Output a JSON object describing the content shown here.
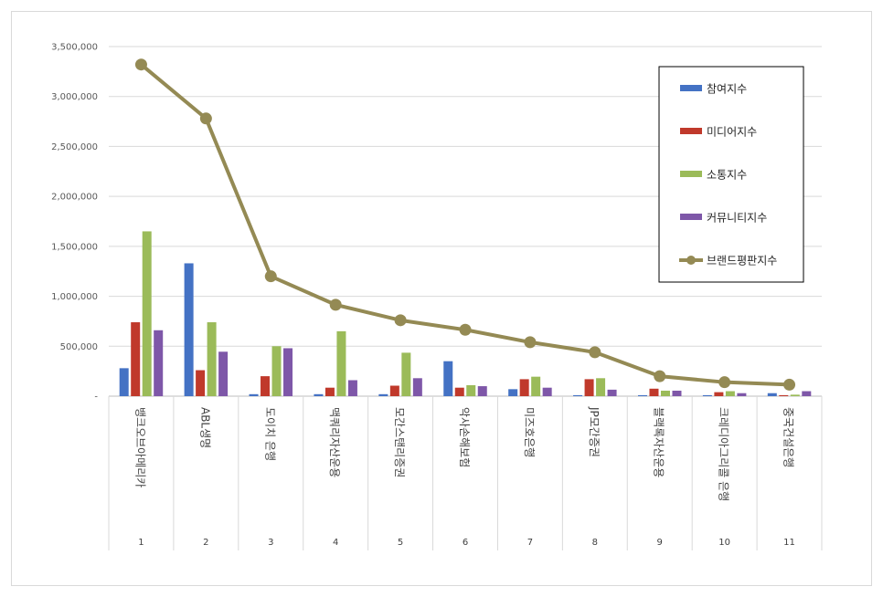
{
  "chart_data": {
    "type": "bar",
    "title": "",
    "xlabel": "",
    "ylabel": "",
    "ylim": [
      0,
      3500000
    ],
    "y_ticks": [
      "-",
      "500,000",
      "1,000,000",
      "1,500,000",
      "2,000,000",
      "2,500,000",
      "3,000,000",
      "3,500,000"
    ],
    "grid": true,
    "legend_position": "right",
    "categories": [
      "뱅크오브아메리카",
      "ABL생명",
      "도이치 은행",
      "맥쿼리자산운용",
      "모간스탠리증권",
      "악사손해보험",
      "미즈호은행",
      "JP모간증권",
      "블랙록자산운용",
      "크레디아그리콜 은행",
      "중국건설은행"
    ],
    "category_numbers": [
      "1",
      "2",
      "3",
      "4",
      "5",
      "6",
      "7",
      "8",
      "9",
      "10",
      "11"
    ],
    "series": [
      {
        "name": "참여지수",
        "kind": "bar",
        "color": "#4472c4",
        "values": [
          280000,
          1330000,
          20000,
          20000,
          20000,
          350000,
          70000,
          10000,
          10000,
          10000,
          30000
        ]
      },
      {
        "name": "미디어지수",
        "kind": "bar",
        "color": "#c0392b",
        "values": [
          740000,
          260000,
          200000,
          85000,
          105000,
          85000,
          170000,
          170000,
          75000,
          40000,
          10000
        ]
      },
      {
        "name": "소통지수",
        "kind": "bar",
        "color": "#9bbb59",
        "values": [
          1650000,
          740000,
          500000,
          650000,
          435000,
          110000,
          195000,
          180000,
          55000,
          50000,
          15000
        ]
      },
      {
        "name": "커뮤니티지수",
        "kind": "bar",
        "color": "#7e57a8",
        "values": [
          660000,
          445000,
          480000,
          160000,
          180000,
          100000,
          85000,
          65000,
          55000,
          30000,
          50000
        ]
      },
      {
        "name": "브랜드평판지수",
        "kind": "line",
        "color": "#948a54",
        "values": [
          3320000,
          2780000,
          1200000,
          915000,
          760000,
          665000,
          540000,
          440000,
          200000,
          140000,
          115000
        ]
      }
    ]
  }
}
